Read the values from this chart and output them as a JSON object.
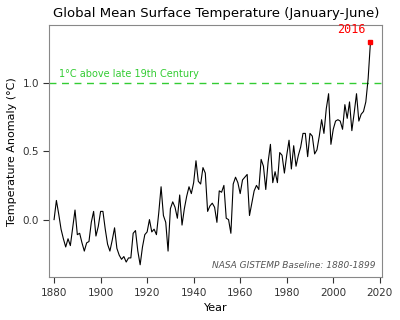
{
  "title": "Global Mean Surface Temperature (January-June)",
  "xlabel": "Year",
  "ylabel": "Temperature Anomaly (°C)",
  "baseline_label": "1°C above late 19th Century",
  "baseline_value": 1.0,
  "note": "NASA GISTEMP Baseline: 1880-1899",
  "highlight_year": 2016,
  "highlight_value": 1.3,
  "highlight_color": "#ff0000",
  "line_color": "#000000",
  "baseline_color": "#33cc33",
  "years": [
    1880,
    1881,
    1882,
    1883,
    1884,
    1885,
    1886,
    1887,
    1888,
    1889,
    1890,
    1891,
    1892,
    1893,
    1894,
    1895,
    1896,
    1897,
    1898,
    1899,
    1900,
    1901,
    1902,
    1903,
    1904,
    1905,
    1906,
    1907,
    1908,
    1909,
    1910,
    1911,
    1912,
    1913,
    1914,
    1915,
    1916,
    1917,
    1918,
    1919,
    1920,
    1921,
    1922,
    1923,
    1924,
    1925,
    1926,
    1927,
    1928,
    1929,
    1930,
    1931,
    1932,
    1933,
    1934,
    1935,
    1936,
    1937,
    1938,
    1939,
    1940,
    1941,
    1942,
    1943,
    1944,
    1945,
    1946,
    1947,
    1948,
    1949,
    1950,
    1951,
    1952,
    1953,
    1954,
    1955,
    1956,
    1957,
    1958,
    1959,
    1960,
    1961,
    1962,
    1963,
    1964,
    1965,
    1966,
    1967,
    1968,
    1969,
    1970,
    1971,
    1972,
    1973,
    1974,
    1975,
    1976,
    1977,
    1978,
    1979,
    1980,
    1981,
    1982,
    1983,
    1984,
    1985,
    1986,
    1987,
    1988,
    1989,
    1990,
    1991,
    1992,
    1993,
    1994,
    1995,
    1996,
    1997,
    1998,
    1999,
    2000,
    2001,
    2002,
    2003,
    2004,
    2005,
    2006,
    2007,
    2008,
    2009,
    2010,
    2011,
    2012,
    2013,
    2014,
    2015,
    2016
  ],
  "values": [
    0.0,
    0.14,
    0.04,
    -0.07,
    -0.14,
    -0.2,
    -0.14,
    -0.19,
    -0.06,
    0.07,
    -0.11,
    -0.1,
    -0.17,
    -0.23,
    -0.17,
    -0.16,
    -0.02,
    0.06,
    -0.12,
    -0.05,
    0.06,
    0.06,
    -0.07,
    -0.18,
    -0.23,
    -0.15,
    -0.06,
    -0.21,
    -0.26,
    -0.29,
    -0.27,
    -0.31,
    -0.28,
    -0.28,
    -0.1,
    -0.08,
    -0.23,
    -0.33,
    -0.2,
    -0.11,
    -0.09,
    0.0,
    -0.09,
    -0.07,
    -0.11,
    0.05,
    0.24,
    0.03,
    -0.02,
    -0.23,
    0.08,
    0.13,
    0.09,
    0.01,
    0.18,
    -0.04,
    0.08,
    0.17,
    0.24,
    0.19,
    0.27,
    0.43,
    0.28,
    0.26,
    0.38,
    0.34,
    0.06,
    0.1,
    0.12,
    0.09,
    -0.02,
    0.21,
    0.2,
    0.25,
    0.01,
    0.0,
    -0.1,
    0.26,
    0.31,
    0.27,
    0.19,
    0.29,
    0.31,
    0.33,
    0.03,
    0.12,
    0.21,
    0.25,
    0.22,
    0.44,
    0.39,
    0.22,
    0.42,
    0.55,
    0.27,
    0.35,
    0.27,
    0.49,
    0.47,
    0.34,
    0.47,
    0.58,
    0.37,
    0.54,
    0.39,
    0.47,
    0.53,
    0.63,
    0.63,
    0.46,
    0.63,
    0.61,
    0.48,
    0.51,
    0.61,
    0.73,
    0.63,
    0.81,
    0.92,
    0.55,
    0.66,
    0.72,
    0.73,
    0.72,
    0.66,
    0.84,
    0.74,
    0.86,
    0.65,
    0.78,
    0.92,
    0.72,
    0.77,
    0.79,
    0.86,
    1.03,
    1.3
  ],
  "xlim": [
    1878,
    2021
  ],
  "ylim": [
    -0.42,
    1.42
  ],
  "yticks": [
    0.0,
    0.5,
    1.0
  ],
  "xticks": [
    1880,
    1900,
    1920,
    1940,
    1960,
    1980,
    2000,
    2020
  ],
  "bg_color": "#ffffff",
  "plot_bg_color": "#ffffff",
  "title_fontsize": 9.5,
  "label_fontsize": 8,
  "tick_fontsize": 7.5,
  "note_fontsize": 6.5,
  "baseline_label_fontsize": 7
}
